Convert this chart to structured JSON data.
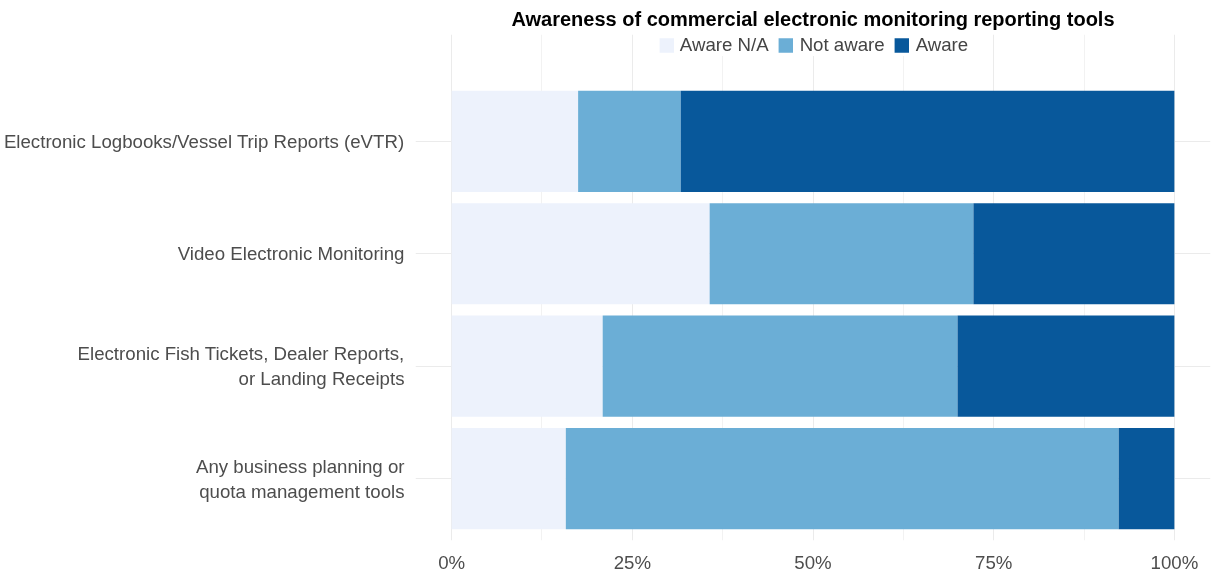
{
  "chart_data": {
    "type": "bar",
    "orientation": "horizontal",
    "stacked": true,
    "title": "Awareness of commercial electronic monitoring reporting tools",
    "categories": [
      "Electronic Logbooks/Vessel Trip Reports (eVTR)",
      "Video Electronic Monitoring",
      "Electronic Fish Tickets, Dealer Reports,\nor Landing Receipts",
      "Any business planning or\nquota management tools"
    ],
    "series": [
      {
        "name": "Aware N/A",
        "color": "#edf2fc",
        "values": [
          17.5,
          35.7,
          20.9,
          15.8
        ]
      },
      {
        "name": "Not aware",
        "color": "#6baed6",
        "values": [
          14.2,
          36.5,
          49.1,
          76.5
        ]
      },
      {
        "name": "Aware",
        "color": "#08589b",
        "values": [
          68.3,
          27.8,
          30.0,
          7.7
        ]
      }
    ],
    "xlim": [
      -5,
      105
    ],
    "xticks": [
      {
        "value": 0,
        "label": "0%"
      },
      {
        "value": 25,
        "label": "25%"
      },
      {
        "value": 50,
        "label": "50%"
      },
      {
        "value": 75,
        "label": "75%"
      },
      {
        "value": 100,
        "label": "100%"
      }
    ],
    "grid": true,
    "legend": "top"
  }
}
